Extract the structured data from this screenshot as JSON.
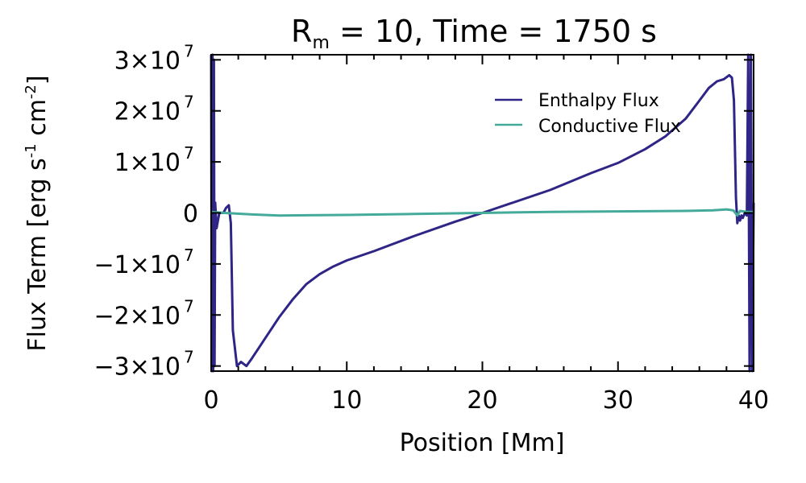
{
  "chart_data": {
    "type": "line",
    "title": {
      "main": "R",
      "subscript": "m",
      "rest": " = 10, Time = 1750 s"
    },
    "xlabel": "Position [Mm]",
    "ylabel": {
      "main": "Flux Term [erg s",
      "sup1": "-1",
      "mid": " cm",
      "sup2": "-2",
      "end": "]"
    },
    "xlim": [
      0,
      40
    ],
    "ylim": [
      -31000000.0,
      31000000.0
    ],
    "xticks": [
      0,
      10,
      20,
      30,
      40
    ],
    "xtick_labels": [
      "0",
      "10",
      "20",
      "30",
      "40"
    ],
    "yticks": [
      30000000.0,
      20000000.0,
      10000000.0,
      0,
      -10000000.0,
      -20000000.0,
      -30000000.0
    ],
    "ytick_labels": [
      {
        "m": "3×10",
        "e": "7"
      },
      {
        "m": "2×10",
        "e": "7"
      },
      {
        "m": "1×10",
        "e": "7"
      },
      {
        "m": "0",
        "e": ""
      },
      {
        "m": "−1×10",
        "e": "7"
      },
      {
        "m": "−2×10",
        "e": "7"
      },
      {
        "m": "−3×10",
        "e": "7"
      }
    ],
    "grid": false,
    "legend_position": "top-right",
    "series": [
      {
        "name": "Enthalpy Flux",
        "color": "#2e2586",
        "x": [
          0,
          0.05,
          0.1,
          0.15,
          0.2,
          0.25,
          0.3,
          0.4,
          0.6,
          0.9,
          1.1,
          1.3,
          1.45,
          1.6,
          1.9,
          2.2,
          2.6,
          3.0,
          4.0,
          5.0,
          6.0,
          7.0,
          8.0,
          9.0,
          10.0,
          12.0,
          15.0,
          18.0,
          20.0,
          22.0,
          25.0,
          28.0,
          30.0,
          32.0,
          33.5,
          35.0,
          36.0,
          36.7,
          37.3,
          37.8,
          38.2,
          38.4,
          38.55,
          38.7,
          38.8,
          38.9,
          39.0,
          39.1,
          39.2,
          39.35,
          39.5,
          39.6,
          39.7,
          39.8,
          39.9,
          40.0
        ],
        "y": [
          31000000.0,
          -31000000.0,
          31000000.0,
          -31000000.0,
          30000000.0,
          -30000000.0,
          2000000.0,
          -3000000.0,
          0.0,
          0.0,
          1000000.0,
          1500000.0,
          -2000000.0,
          -23000000.0,
          -30000000.0,
          -29200000.0,
          -30000000.0,
          -28500000.0,
          -24500000.0,
          -20500000.0,
          -17000000.0,
          -14000000.0,
          -12000000.0,
          -10500000.0,
          -9300000.0,
          -7500000.0,
          -4500000.0,
          -1700000.0,
          0.0,
          1800000.0,
          4500000.0,
          7800000.0,
          9800000.0,
          12500000.0,
          15000000.0,
          18500000.0,
          22000000.0,
          24500000.0,
          25800000.0,
          26200000.0,
          27000000.0,
          26500000.0,
          22000000.0,
          3000000.0,
          -2000000.0,
          -500000.0,
          -1500000.0,
          -500000.0,
          -1000000.0,
          0.0,
          -500000.0,
          31000000.0,
          -31000000.0,
          31000000.0,
          -31000000.0,
          2000000.0
        ]
      },
      {
        "name": "Conductive Flux",
        "color": "#44aa99",
        "x": [
          0,
          1,
          3,
          5,
          10,
          15,
          20,
          25,
          30,
          35,
          37,
          38,
          38.5,
          38.8,
          39,
          39.5,
          40
        ],
        "y": [
          200000.0,
          0.0,
          -300000.0,
          -500000.0,
          -400000.0,
          -200000.0,
          0.0,
          200000.0,
          300000.0,
          400000.0,
          500000.0,
          700000.0,
          500000.0,
          -500000.0,
          400000.0,
          200000.0,
          200000.0
        ]
      }
    ]
  }
}
